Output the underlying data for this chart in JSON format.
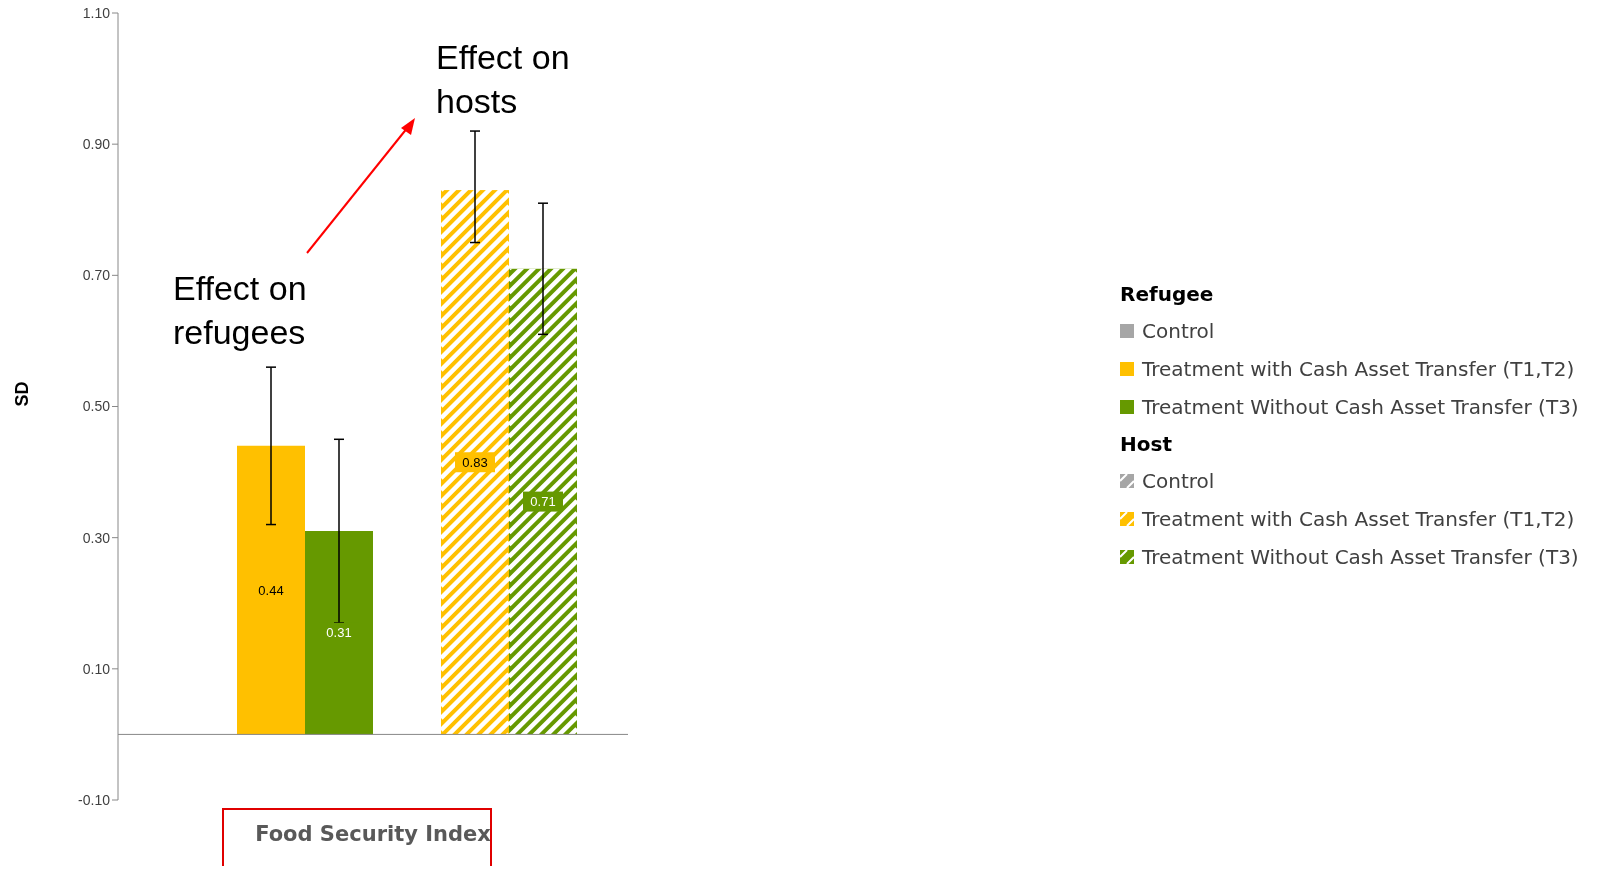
{
  "chart_data": {
    "type": "bar",
    "categories": [
      "Food Security Index"
    ],
    "ylabel": "SD",
    "ylim": [
      -0.1,
      1.1
    ],
    "yticks": [
      {
        "value": -0.1,
        "label": "-0.10"
      },
      {
        "value": 0.1,
        "label": "0.10"
      },
      {
        "value": 0.3,
        "label": "0.30"
      },
      {
        "value": 0.5,
        "label": "0.50"
      },
      {
        "value": 0.7,
        "label": "0.70"
      },
      {
        "value": 0.9,
        "label": "0.90"
      },
      {
        "value": 1.1,
        "label": "1.10"
      }
    ],
    "series": [
      {
        "name": "Control",
        "color": "#a6a6a6",
        "values": [
          0
        ],
        "value_labels": [
          null
        ],
        "errors": [
          null
        ]
      },
      {
        "name": "Treatment with Cash Asset Transfer (T1,T2)",
        "color": "#ffc000",
        "values": [
          0.44
        ],
        "value_labels": [
          "0.44"
        ],
        "errors": [
          [
            0.32,
            0.56
          ]
        ]
      },
      {
        "name": "Treatment Without Cash Asset Transfer (T3)",
        "color": "#669900",
        "values": [
          0.31
        ],
        "value_labels": [
          "0.31"
        ],
        "errors": [
          [
            0.17,
            0.45
          ]
        ]
      },
      {
        "name": "Control",
        "color": "#a6a6a6",
        "values": [
          0
        ],
        "value_labels": [
          null
        ],
        "errors": [
          null
        ]
      },
      {
        "name": "Treatment with Cash Asset Transfer (T1,T2)",
        "color": "#ffc000",
        "values": [
          0.83
        ],
        "value_labels": [
          "0.83"
        ],
        "errors": [
          [
            0.75,
            0.92
          ]
        ]
      },
      {
        "name": "Treatment Without Cash Asset Transfer (T3)",
        "color": "#669900",
        "values": [
          0.71
        ],
        "value_labels": [
          "0.71"
        ],
        "errors": [
          [
            0.61,
            0.81
          ]
        ]
      }
    ],
    "annotations": [
      "Effect on refugees",
      "Effect on hosts",
      "Refugee",
      "Host"
    ],
    "legend": "right",
    "grid": false
  }
}
